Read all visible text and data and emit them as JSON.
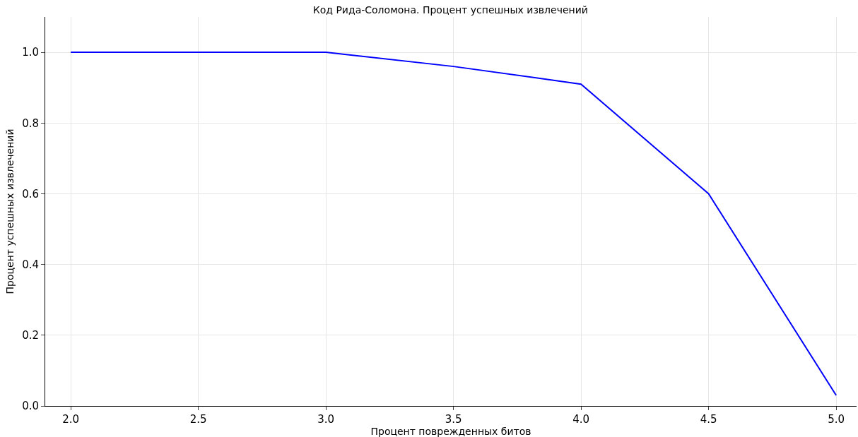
{
  "chart_data": {
    "type": "line",
    "title": "Код Рида-Соломона. Процент успешных извлечений",
    "xlabel": "Процент поврежденных битов",
    "ylabel": "Процент успешных извлечений",
    "x": [
      2.0,
      2.5,
      3.0,
      3.5,
      4.0,
      4.5,
      5.0
    ],
    "series": [
      {
        "color": "#0000ff",
        "values": [
          1.0,
          1.0,
          1.0,
          0.96,
          0.91,
          0.6,
          0.03
        ]
      }
    ],
    "xlim": [
      1.9,
      5.08
    ],
    "ylim": [
      0,
      1.1
    ],
    "xticks": [
      {
        "value": 2,
        "label": "2.0"
      },
      {
        "value": 2.5,
        "label": "2.5"
      },
      {
        "value": 3,
        "label": "3.0"
      },
      {
        "value": 3.5,
        "label": "3.5"
      },
      {
        "value": 4,
        "label": "4.0"
      },
      {
        "value": 4.5,
        "label": "4.5"
      },
      {
        "value": 5,
        "label": "5.0"
      }
    ],
    "yticks": [
      {
        "value": 0,
        "label": "0.0"
      },
      {
        "value": 0.2,
        "label": "0.2"
      },
      {
        "value": 0.4,
        "label": "0.4"
      },
      {
        "value": 0.6,
        "label": "0.6"
      },
      {
        "value": 0.8,
        "label": "0.8"
      },
      {
        "value": 1,
        "label": "1.0"
      }
    ],
    "grid": true,
    "marker": "none",
    "line_style": "solid"
  }
}
